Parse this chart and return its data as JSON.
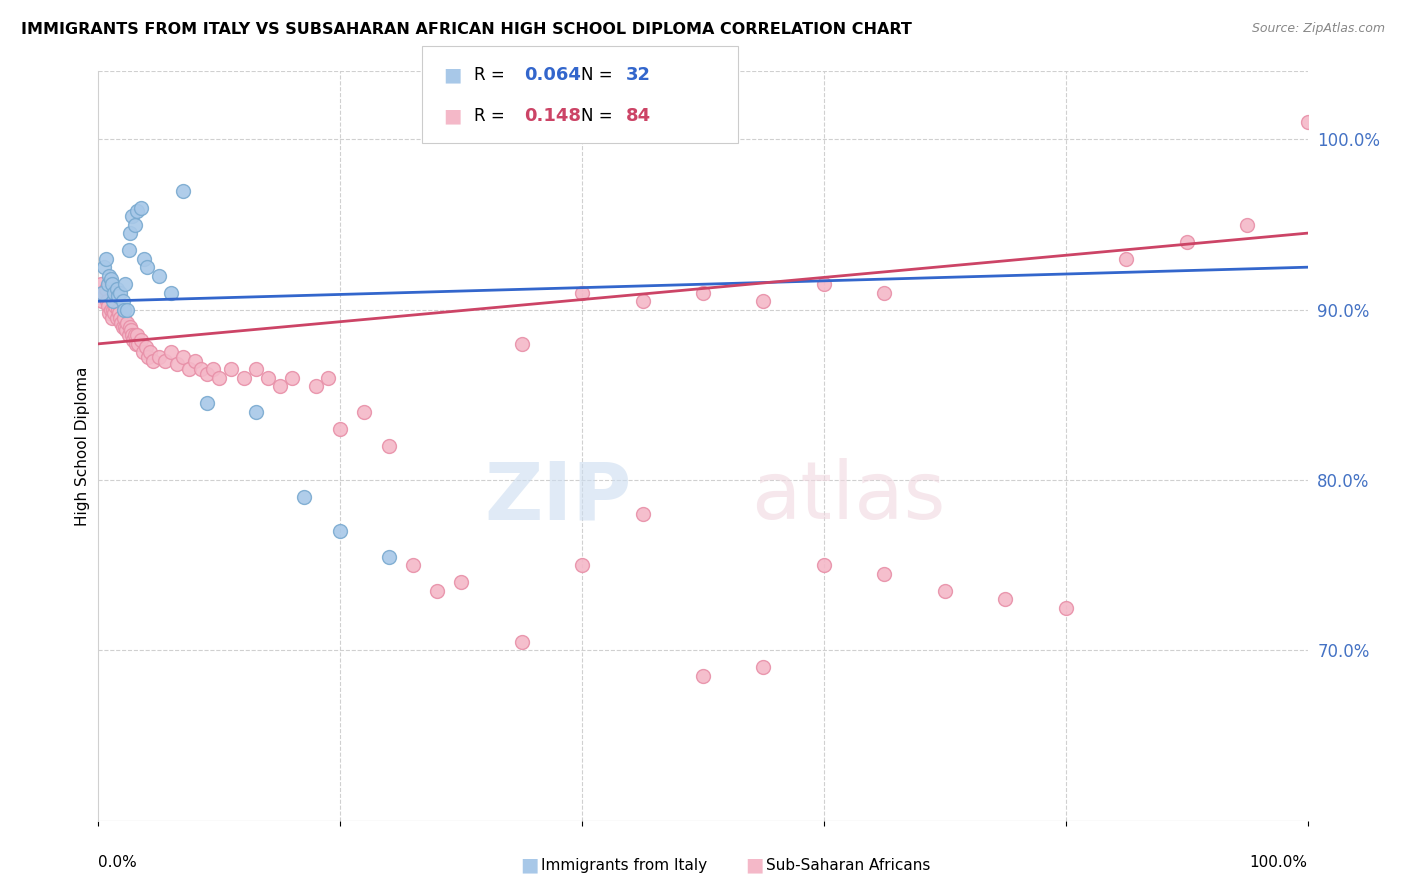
{
  "title": "IMMIGRANTS FROM ITALY VS SUBSAHARAN AFRICAN HIGH SCHOOL DIPLOMA CORRELATION CHART",
  "source": "Source: ZipAtlas.com",
  "ylabel": "High School Diploma",
  "right_yticks": [
    100.0,
    90.0,
    80.0,
    70.0
  ],
  "xlim": [
    0.0,
    100.0
  ],
  "ylim": [
    60.0,
    104.0
  ],
  "legend_italy_R": "0.064",
  "legend_italy_N": "32",
  "legend_africa_R": "0.148",
  "legend_africa_N": "84",
  "italy_color": "#a8c8e8",
  "africa_color": "#f4b8c8",
  "italy_edge_color": "#7aaad0",
  "africa_edge_color": "#e890a8",
  "italy_line_color": "#3366cc",
  "africa_line_color": "#cc4466",
  "italy_x": [
    0.3,
    0.5,
    0.6,
    0.8,
    0.9,
    1.0,
    1.1,
    1.2,
    1.3,
    1.5,
    1.6,
    1.8,
    2.0,
    2.1,
    2.2,
    2.4,
    2.5,
    2.6,
    2.8,
    3.0,
    3.2,
    3.5,
    3.8,
    4.0,
    5.0,
    6.0,
    7.0,
    9.0,
    13.0,
    17.0,
    20.0,
    24.0
  ],
  "italy_y": [
    91.0,
    92.5,
    93.0,
    91.5,
    92.0,
    91.8,
    91.5,
    90.5,
    91.0,
    91.2,
    90.8,
    91.0,
    90.5,
    90.0,
    91.5,
    90.0,
    93.5,
    94.5,
    95.5,
    95.0,
    95.8,
    96.0,
    93.0,
    92.5,
    92.0,
    91.0,
    97.0,
    84.5,
    84.0,
    79.0,
    77.0,
    75.5
  ],
  "africa_x": [
    0.2,
    0.3,
    0.4,
    0.5,
    0.6,
    0.7,
    0.8,
    0.9,
    1.0,
    1.1,
    1.2,
    1.3,
    1.4,
    1.5,
    1.6,
    1.7,
    1.8,
    1.9,
    2.0,
    2.1,
    2.2,
    2.3,
    2.4,
    2.5,
    2.6,
    2.7,
    2.8,
    2.9,
    3.0,
    3.1,
    3.2,
    3.3,
    3.5,
    3.7,
    3.9,
    4.1,
    4.3,
    4.5,
    5.0,
    5.5,
    6.0,
    6.5,
    7.0,
    7.5,
    8.0,
    8.5,
    9.0,
    9.5,
    10.0,
    11.0,
    12.0,
    13.0,
    14.0,
    15.0,
    16.0,
    18.0,
    19.0,
    20.0,
    22.0,
    24.0,
    26.0,
    28.0,
    30.0,
    35.0,
    40.0,
    45.0,
    50.0,
    55.0,
    60.0,
    65.0,
    35.0,
    40.0,
    45.0,
    50.0,
    55.0,
    60.0,
    65.0,
    70.0,
    75.0,
    80.0,
    85.0,
    90.0,
    95.0,
    100.0
  ],
  "africa_y": [
    91.5,
    90.5,
    91.0,
    90.8,
    91.2,
    90.5,
    90.2,
    89.8,
    90.0,
    89.5,
    90.0,
    89.8,
    90.2,
    89.5,
    90.0,
    89.8,
    89.5,
    89.2,
    89.0,
    89.5,
    89.0,
    88.8,
    89.2,
    88.5,
    89.0,
    88.8,
    88.5,
    88.2,
    88.5,
    88.0,
    88.5,
    88.0,
    88.2,
    87.5,
    87.8,
    87.2,
    87.5,
    87.0,
    87.2,
    87.0,
    87.5,
    86.8,
    87.2,
    86.5,
    87.0,
    86.5,
    86.2,
    86.5,
    86.0,
    86.5,
    86.0,
    86.5,
    86.0,
    85.5,
    86.0,
    85.5,
    86.0,
    83.0,
    84.0,
    82.0,
    75.0,
    73.5,
    74.0,
    70.5,
    75.0,
    78.0,
    68.5,
    69.0,
    75.0,
    74.5,
    88.0,
    91.0,
    90.5,
    91.0,
    90.5,
    91.5,
    91.0,
    73.5,
    73.0,
    72.5,
    93.0,
    94.0,
    95.0,
    101.0
  ]
}
